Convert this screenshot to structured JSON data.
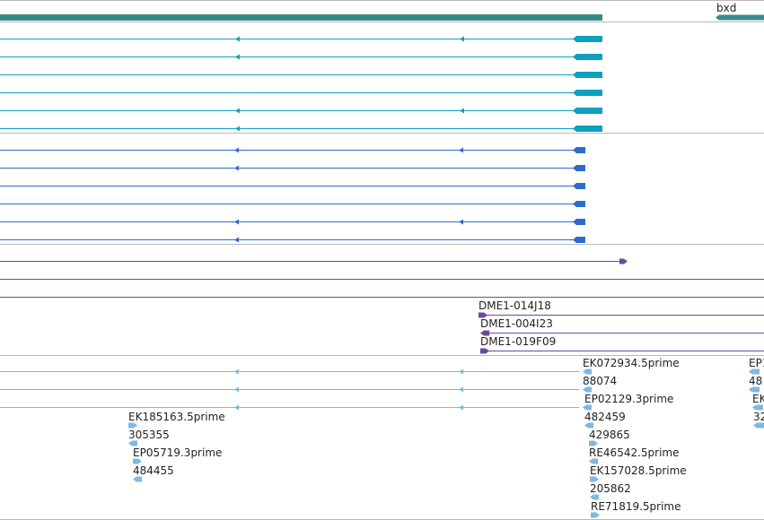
{
  "colors": {
    "gene": "#3b8a8a",
    "transcript_a": "#0ea0c0",
    "transcript_b": "#2f6ad0",
    "insertion": "#6a4aa0",
    "est": "#7fb8e0",
    "separator": "#b8b8b8"
  },
  "gene_label": "bxd",
  "bac_labels": [
    "DME1-014J18",
    "DME1-004I23",
    "DME1-019F09"
  ],
  "est_labels": [
    "EK072934.5prime",
    "88074",
    "EP02129.3prime",
    "482459",
    "429865",
    "RE46542.5prime",
    "EK157028.5prime",
    "205862",
    "RE71819.5prime",
    "EK185163.5prime",
    "305355",
    "EP05719.3prime",
    "484455",
    "EP1",
    "48",
    "EK",
    "32"
  ]
}
